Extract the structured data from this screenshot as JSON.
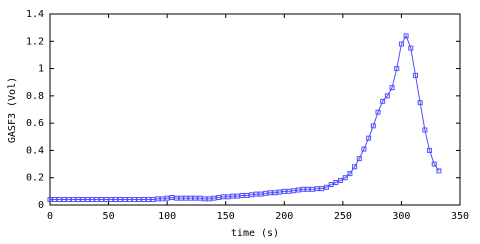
{
  "chart_data": {
    "type": "line",
    "xlabel": "time (s)",
    "ylabel": "GASF3 (Vol)",
    "xlim": [
      0,
      350
    ],
    "ylim": [
      0,
      1.4
    ],
    "xticks": [
      0,
      50,
      100,
      150,
      200,
      250,
      300,
      350
    ],
    "yticks": [
      0,
      0.2,
      0.4,
      0.6,
      0.8,
      1,
      1.2,
      1.4
    ],
    "x": [
      0,
      4,
      8,
      12,
      16,
      20,
      24,
      28,
      32,
      36,
      40,
      44,
      48,
      52,
      56,
      60,
      64,
      68,
      72,
      76,
      80,
      84,
      88,
      92,
      96,
      100,
      104,
      108,
      112,
      116,
      120,
      124,
      128,
      132,
      136,
      140,
      144,
      148,
      152,
      156,
      160,
      164,
      168,
      172,
      176,
      180,
      184,
      188,
      192,
      196,
      200,
      204,
      208,
      212,
      216,
      220,
      224,
      228,
      232,
      236,
      240,
      244,
      248,
      252,
      256,
      260,
      264,
      268,
      272,
      276,
      280,
      284,
      288,
      292,
      296,
      300,
      304,
      308,
      312,
      316,
      320,
      324,
      328,
      332
    ],
    "series": [
      {
        "color": "#5050ff",
        "values": [
          0.04,
          0.04,
          0.04,
          0.04,
          0.04,
          0.04,
          0.04,
          0.04,
          0.04,
          0.04,
          0.04,
          0.04,
          0.04,
          0.04,
          0.04,
          0.04,
          0.04,
          0.04,
          0.04,
          0.04,
          0.04,
          0.04,
          0.04,
          0.045,
          0.045,
          0.05,
          0.055,
          0.05,
          0.05,
          0.05,
          0.05,
          0.05,
          0.05,
          0.045,
          0.045,
          0.05,
          0.055,
          0.06,
          0.06,
          0.065,
          0.065,
          0.07,
          0.07,
          0.075,
          0.08,
          0.08,
          0.085,
          0.09,
          0.09,
          0.095,
          0.1,
          0.1,
          0.105,
          0.11,
          0.115,
          0.115,
          0.115,
          0.12,
          0.12,
          0.13,
          0.15,
          0.165,
          0.18,
          0.2,
          0.23,
          0.28,
          0.34,
          0.41,
          0.49,
          0.58,
          0.68,
          0.76,
          0.8,
          0.86,
          1.0,
          1.18,
          1.24,
          1.15,
          0.95,
          0.75,
          0.55,
          0.4,
          0.3,
          0.25
        ]
      }
    ]
  }
}
